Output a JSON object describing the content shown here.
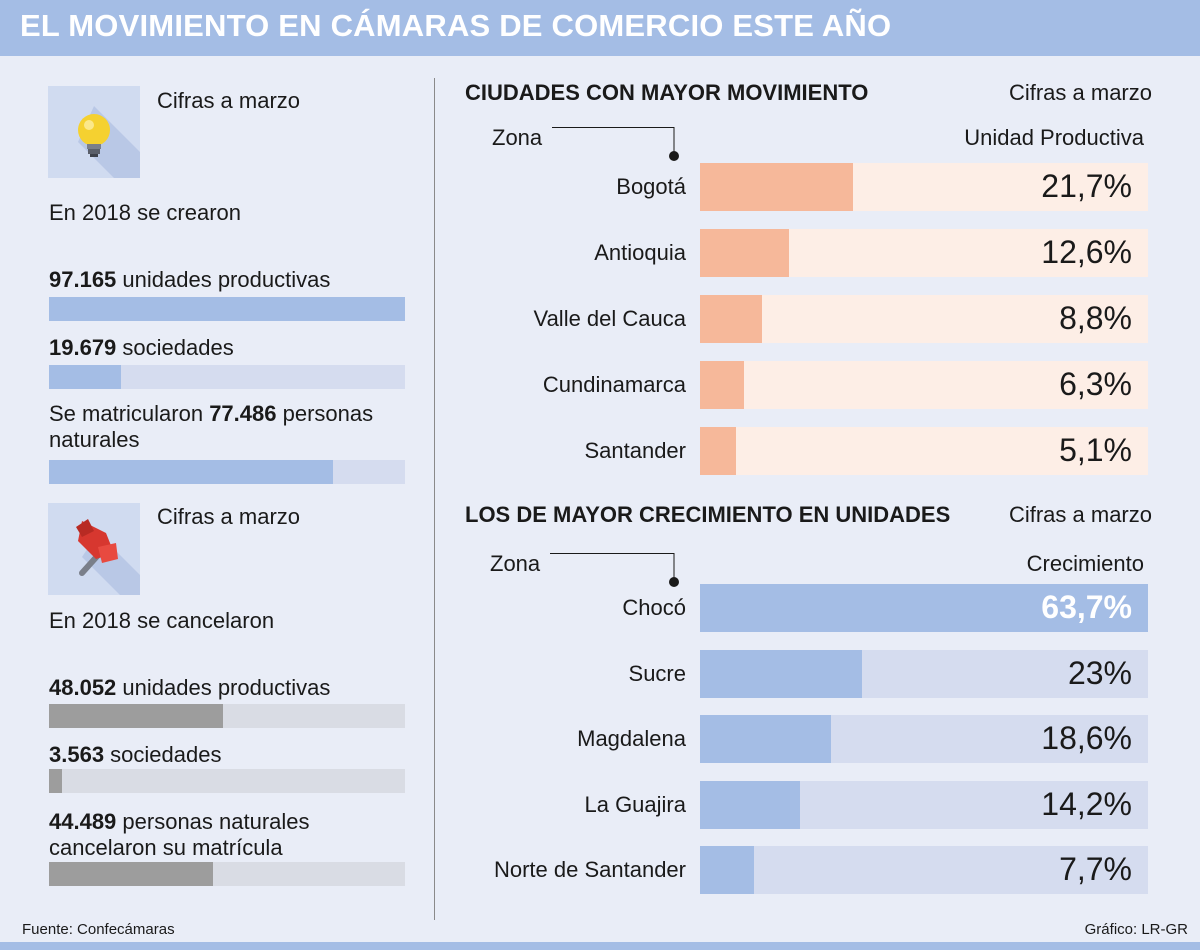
{
  "header": {
    "title": "EL MOVIMIENTO EN CÁMARAS DE COMERCIO ESTE AÑO"
  },
  "left": {
    "created": {
      "icon": "lightbulb-icon",
      "note": "Cifras a marzo",
      "heading": "En 2018 se crearon",
      "bar_color": "#a4bde5",
      "track_color": "#d5dcef",
      "items": [
        {
          "value": "97.165",
          "label": " unidades productivas",
          "fraction": 1.0
        },
        {
          "value": "19.679",
          "label": " sociedades",
          "fraction": 0.203
        },
        {
          "prefix": "Se matricularon ",
          "value": "77.486",
          "label": " personas",
          "line2": "naturales",
          "fraction": 0.797
        }
      ]
    },
    "cancelled": {
      "icon": "pushpin-icon",
      "note": "Cifras a marzo",
      "heading": "En 2018 se cancelaron",
      "bar_color": "#9d9d9d",
      "track_color": "#d9dce4",
      "items": [
        {
          "value": "48.052",
          "label": " unidades productivas",
          "fraction": 0.49
        },
        {
          "value": "3.563",
          "label": " sociedades",
          "fraction": 0.037
        },
        {
          "value": "44.489",
          "label": " personas naturales",
          "line2": "cancelaron su matrícula",
          "fraction": 0.46
        }
      ]
    }
  },
  "chart_data": [
    {
      "type": "bar",
      "title": "CIUDADES CON MAYOR MOVIMIENTO",
      "note": "Cifras a marzo",
      "xlabel": "Zona",
      "ylabel": "Unidad Productiva",
      "categories": [
        "Bogotá",
        "Antioquia",
        "Valle del Cauca",
        "Cundinamarca",
        "Santander"
      ],
      "values": [
        21.7,
        12.6,
        8.8,
        6.3,
        5.1
      ],
      "labels": [
        "21,7%",
        "12,6%",
        "8,8%",
        "6,3%",
        "5,1%"
      ],
      "ylim": [
        0,
        63.7
      ],
      "color": "#f6b89a",
      "track_color": "#fdeee6"
    },
    {
      "type": "bar",
      "title": "LOS DE MAYOR CRECIMIENTO EN UNIDADES",
      "note": "Cifras a marzo",
      "xlabel": "Zona",
      "ylabel": "Crecimiento",
      "categories": [
        "Chocó",
        "Sucre",
        "Magdalena",
        "La Guajira",
        "Norte de Santander"
      ],
      "values": [
        63.7,
        23,
        18.6,
        14.2,
        7.7
      ],
      "labels": [
        "63,7%",
        "23%",
        "18,6%",
        "14,2%",
        "7,7%"
      ],
      "ylim": [
        0,
        63.7
      ],
      "color": "#a4bde5",
      "track_color": "#d5dcef"
    }
  ],
  "footer": {
    "source": "Fuente: Confecámaras",
    "credit": "Gráfico: LR-GR"
  }
}
